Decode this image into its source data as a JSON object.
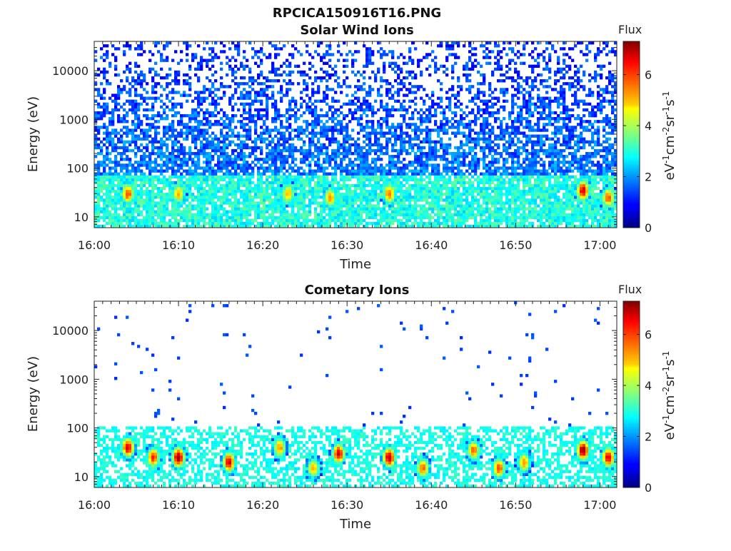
{
  "figure": {
    "title": "RPCICA150916T16.PNG"
  },
  "colors": {
    "colormap": "jet",
    "axis": "#222222",
    "background": "#ffffff"
  },
  "chart_data": [
    {
      "type": "heatmap",
      "title": "Solar Wind Ions",
      "xlabel": "Time",
      "ylabel": "Energy (eV)",
      "x_range": [
        "16:00",
        "17:02"
      ],
      "x_ticks": [
        "16:00",
        "16:10",
        "16:20",
        "16:30",
        "16:40",
        "16:50",
        "17:00"
      ],
      "y_scale": "log",
      "y_range": [
        6,
        40000
      ],
      "y_ticks": [
        10,
        100,
        1000,
        10000
      ],
      "y_tick_labels": [
        "10",
        "100",
        "1000",
        "10000"
      ],
      "colorbar": {
        "title": "Flux",
        "label": "eV-1cm-2sr-1s-1",
        "range": [
          0,
          7.3
        ],
        "ticks": [
          0,
          2,
          4,
          6
        ]
      },
      "description_values": {
        "background_flux_low_energy": 2.8,
        "background_flux_high_energy": 1.2,
        "peak_flux": 6.5
      },
      "hotspots": [
        {
          "time": "16:04",
          "energy_eV": 30,
          "flux": 5.8
        },
        {
          "time": "16:10",
          "energy_eV": 30,
          "flux": 5.0
        },
        {
          "time": "16:23",
          "energy_eV": 30,
          "flux": 5.0
        },
        {
          "time": "16:28",
          "energy_eV": 25,
          "flux": 5.2
        },
        {
          "time": "16:35",
          "energy_eV": 30,
          "flux": 5.5
        },
        {
          "time": "16:58",
          "energy_eV": 35,
          "flux": 6.5
        },
        {
          "time": "17:01",
          "energy_eV": 25,
          "flux": 5.6
        }
      ]
    },
    {
      "type": "heatmap",
      "title": "Cometary Ions",
      "xlabel": "Time",
      "ylabel": "Energy (eV)",
      "x_range": [
        "16:00",
        "17:02"
      ],
      "x_ticks": [
        "16:00",
        "16:10",
        "16:20",
        "16:30",
        "16:40",
        "16:50",
        "17:00"
      ],
      "y_scale": "log",
      "y_range": [
        6,
        40000
      ],
      "y_ticks": [
        10,
        100,
        1000,
        10000
      ],
      "y_tick_labels": [
        "10",
        "100",
        "1000",
        "10000"
      ],
      "colorbar": {
        "title": "Flux",
        "label": "eV-1cm-2sr-1s-1",
        "range": [
          0,
          7.3
        ],
        "ticks": [
          0,
          2,
          4,
          6
        ]
      },
      "hotspots": [
        {
          "time": "16:04",
          "energy_eV": 40,
          "flux": 6.5
        },
        {
          "time": "16:07",
          "energy_eV": 25,
          "flux": 6.0
        },
        {
          "time": "16:10",
          "energy_eV": 25,
          "flux": 7.0
        },
        {
          "time": "16:16",
          "energy_eV": 20,
          "flux": 6.5
        },
        {
          "time": "16:22",
          "energy_eV": 40,
          "flux": 5.2
        },
        {
          "time": "16:26",
          "energy_eV": 15,
          "flux": 5.0
        },
        {
          "time": "16:29",
          "energy_eV": 30,
          "flux": 6.5
        },
        {
          "time": "16:35",
          "energy_eV": 25,
          "flux": 6.8
        },
        {
          "time": "16:39",
          "energy_eV": 15,
          "flux": 5.5
        },
        {
          "time": "16:45",
          "energy_eV": 35,
          "flux": 5.5
        },
        {
          "time": "16:48",
          "energy_eV": 15,
          "flux": 5.8
        },
        {
          "time": "16:51",
          "energy_eV": 20,
          "flux": 5.2
        },
        {
          "time": "16:58",
          "energy_eV": 35,
          "flux": 7.0
        },
        {
          "time": "17:01",
          "energy_eV": 25,
          "flux": 6.5
        }
      ]
    }
  ]
}
